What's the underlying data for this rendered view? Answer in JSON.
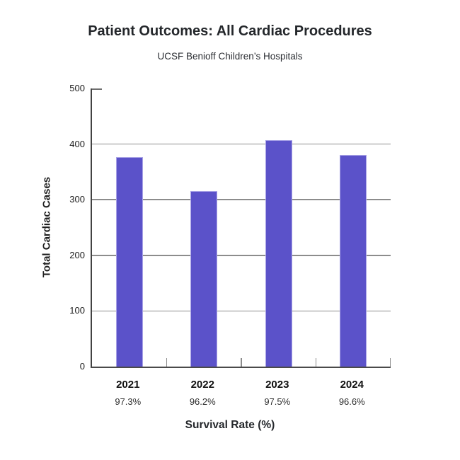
{
  "chart_data": {
    "type": "bar",
    "title": "Patient Outcomes: All Cardiac Procedures",
    "subtitle": "UCSF Benioff Children’s Hospitals",
    "categories": [
      "2021",
      "2022",
      "2023",
      "2024"
    ],
    "values": [
      377,
      315,
      407,
      380
    ],
    "category_sublabels": [
      "97.3%",
      "96.2%",
      "97.5%",
      "96.6%"
    ],
    "xlabel": "Survival Rate (%)",
    "ylabel": "Total Cardiac Cases",
    "ylim": [
      0,
      500
    ],
    "yticks": [
      0,
      100,
      200,
      300,
      400,
      500
    ],
    "grid": "horizontal",
    "legend": "none",
    "colors": {
      "bar": "#5b52c9",
      "bar_border": "#a9a3e6",
      "grid": "#8c8c8c",
      "axis": "#424242",
      "tick_text": "#1c1c1c",
      "title_text": "#24272b"
    }
  }
}
